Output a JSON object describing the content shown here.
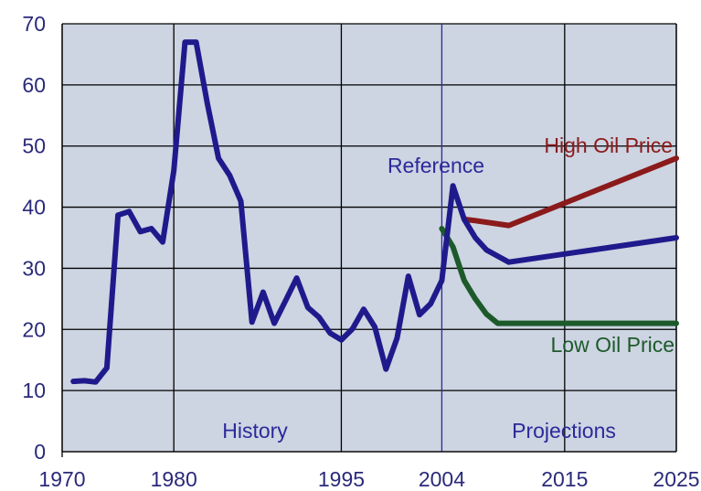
{
  "chart_data": {
    "type": "line",
    "xlim": [
      1970,
      2025
    ],
    "ylim": [
      0,
      70
    ],
    "x_ticks": [
      "1970",
      "1980",
      "1995",
      "2004",
      "2015",
      "2025"
    ],
    "x_tick_values": [
      1970,
      1980,
      1995,
      2004,
      2015,
      2025
    ],
    "y_ticks": [
      "0",
      "10",
      "20",
      "30",
      "40",
      "50",
      "60",
      "70"
    ],
    "y_tick_values": [
      0,
      10,
      20,
      30,
      40,
      50,
      60,
      70
    ],
    "grid": true,
    "divider_x": 2004,
    "region_labels": {
      "history": "History",
      "projections": "Projections"
    },
    "series": [
      {
        "name": "Reference",
        "color": "#1f1a8c",
        "x": [
          1971,
          1972,
          1973,
          1974,
          1975,
          1976,
          1977,
          1978,
          1979,
          1980,
          1981,
          1982,
          1983,
          1984,
          1985,
          1986,
          1987,
          1988,
          1989,
          1990,
          1991,
          1992,
          1993,
          1994,
          1995,
          1996,
          1997,
          1998,
          1999,
          2000,
          2001,
          2002,
          2003,
          2004,
          2005,
          2006,
          2007,
          2008,
          2010,
          2025
        ],
        "y": [
          11.5,
          11.6,
          11.4,
          13.7,
          38.7,
          39.3,
          36.0,
          36.5,
          34.3,
          46.0,
          67.0,
          67.0,
          57.0,
          48.0,
          45.2,
          41.0,
          21.2,
          26.1,
          21.0,
          24.7,
          28.4,
          23.6,
          22.0,
          19.4,
          18.3,
          20.1,
          23.3,
          20.4,
          13.5,
          18.6,
          28.7,
          22.4,
          24.2,
          28.0,
          43.5,
          38.0,
          35.0,
          33.0,
          31.0,
          35.0
        ]
      },
      {
        "name": "High Oil Price",
        "color": "#8b1a1a",
        "x": [
          2006,
          2007,
          2010,
          2025
        ],
        "y": [
          38.0,
          37.8,
          37.0,
          48.0
        ]
      },
      {
        "name": "Low Oil Price",
        "color": "#1d5a2a",
        "x": [
          2004,
          2005,
          2006,
          2007,
          2008,
          2009,
          2010,
          2025
        ],
        "y": [
          36.5,
          33.5,
          28.0,
          25.0,
          22.5,
          21.0,
          21.0,
          21.0
        ]
      }
    ]
  }
}
